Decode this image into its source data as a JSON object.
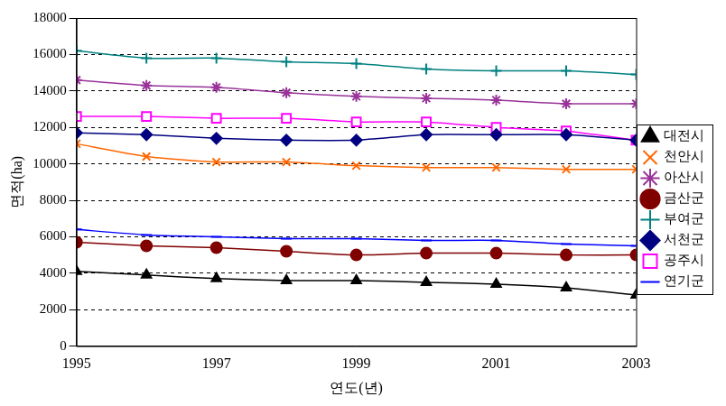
{
  "chart_data": {
    "type": "line",
    "x_label": "연도(년)",
    "y_label": "면적(ha)",
    "x": [
      1995,
      1996,
      1997,
      1998,
      1999,
      2000,
      2001,
      2002,
      2003
    ],
    "xlim": [
      1995,
      2003
    ],
    "xticks": [
      1995,
      1997,
      1999,
      2001,
      2003
    ],
    "ylim": [
      0,
      18000
    ],
    "yticks": [
      0,
      2000,
      4000,
      6000,
      8000,
      10000,
      12000,
      14000,
      16000,
      18000
    ],
    "grid": true,
    "legend": "right",
    "series": [
      {
        "name": "대전시",
        "color": "#000000",
        "marker": "triangle",
        "values": [
          4100,
          3900,
          3700,
          3600,
          3600,
          3500,
          3400,
          3200,
          2800
        ]
      },
      {
        "name": "천안시",
        "color": "#ff6600",
        "marker": "x",
        "values": [
          11100,
          10400,
          10100,
          10100,
          9900,
          9800,
          9800,
          9700,
          9700
        ]
      },
      {
        "name": "아산시",
        "color": "#993399",
        "marker": "star",
        "values": [
          14600,
          14300,
          14200,
          13900,
          13700,
          13600,
          13500,
          13300,
          13300
        ]
      },
      {
        "name": "금산군",
        "color": "#800000",
        "marker": "circle",
        "values": [
          5700,
          5500,
          5400,
          5200,
          5000,
          5100,
          5100,
          5000,
          5000
        ]
      },
      {
        "name": "부여군",
        "color": "#008080",
        "marker": "cross",
        "values": [
          16200,
          15800,
          15800,
          15600,
          15500,
          15200,
          15100,
          15100,
          14900
        ]
      },
      {
        "name": "서천군",
        "color": "#000080",
        "marker": "diamond",
        "values": [
          11700,
          11600,
          11400,
          11300,
          11300,
          11600,
          11600,
          11600,
          11300
        ]
      },
      {
        "name": "공주시",
        "color": "#ff00ff",
        "marker": "open_square",
        "values": [
          12600,
          12600,
          12500,
          12500,
          12300,
          12300,
          12000,
          11800,
          11300
        ]
      },
      {
        "name": "연기군",
        "color": "#0000ff",
        "marker": "dash",
        "values": [
          6400,
          6100,
          6000,
          5900,
          5900,
          5800,
          5800,
          5600,
          5500
        ]
      }
    ]
  }
}
